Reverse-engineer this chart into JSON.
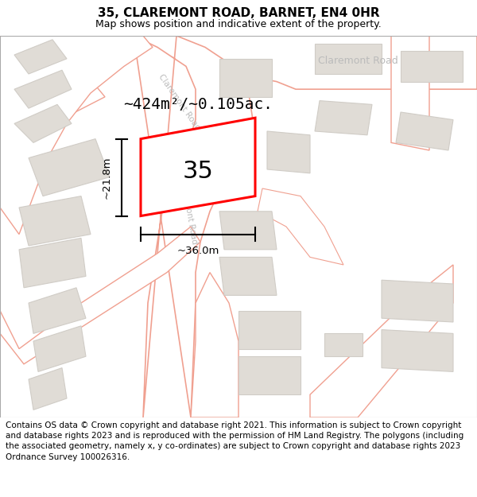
{
  "title": "35, CLAREMONT ROAD, BARNET, EN4 0HR",
  "subtitle": "Map shows position and indicative extent of the property.",
  "footer": "Contains OS data © Crown copyright and database right 2021. This information is subject to Crown copyright and database rights 2023 and is reproduced with the permission of HM Land Registry. The polygons (including the associated geometry, namely x, y co-ordinates) are subject to Crown copyright and database rights 2023 Ordnance Survey 100026316.",
  "bg_color": "#f5f3f0",
  "road_fill": "#ffffff",
  "road_stroke": "#f0a090",
  "building_fill": "#e0dcd6",
  "building_stroke": "#d0ccc6",
  "highlight_fill": "#ffffff",
  "highlight_stroke": "#ff0000",
  "area_text": "~424m²/~0.105ac.",
  "label_35": "35",
  "dim_width": "~36.0m",
  "dim_height": "~21.8m",
  "title_fontsize": 11,
  "subtitle_fontsize": 9,
  "footer_fontsize": 7.5
}
